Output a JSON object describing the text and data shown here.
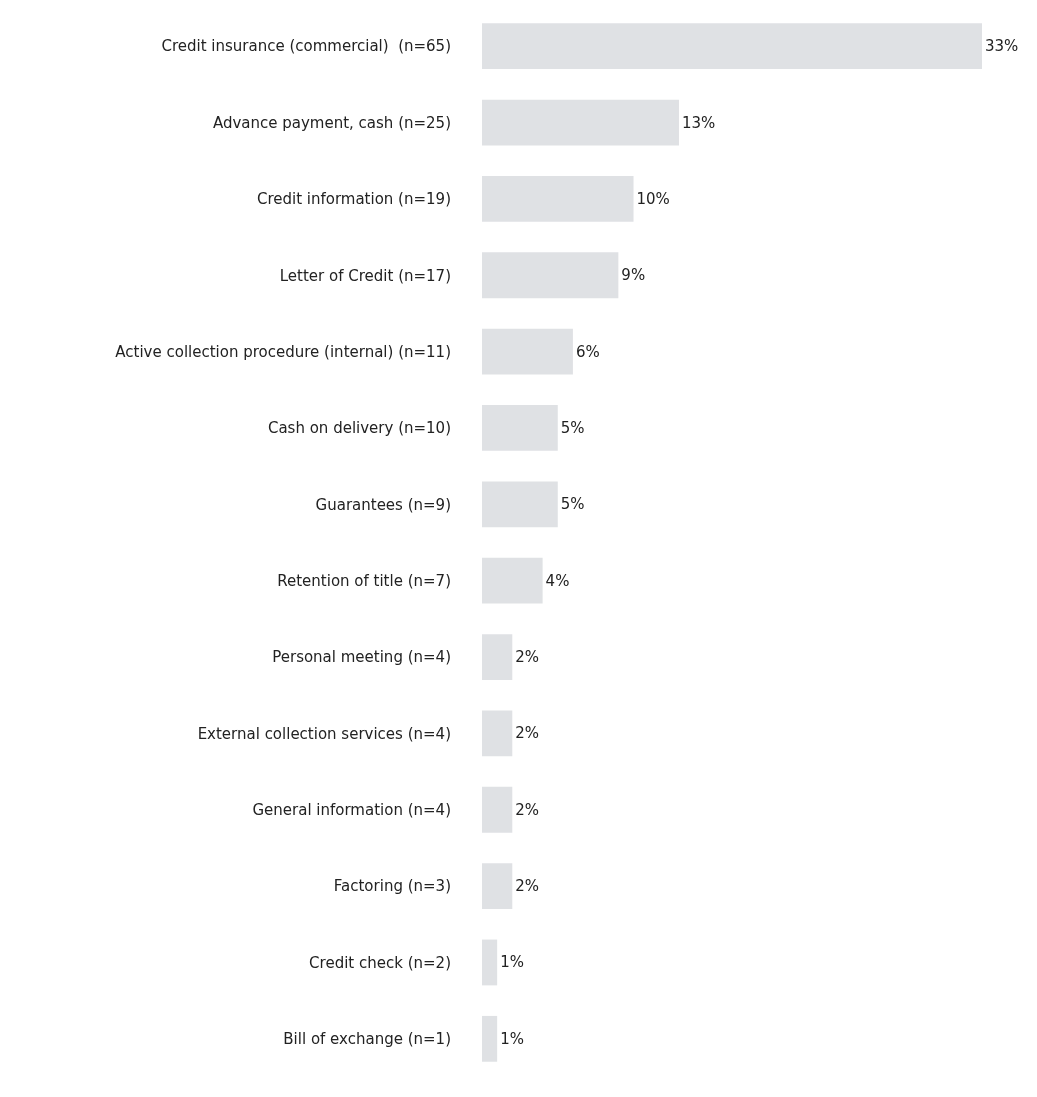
{
  "chart_data": {
    "type": "bar",
    "orientation": "horizontal",
    "categories": [
      "Credit insurance (commercial)  (n=65)",
      "Advance payment, cash (n=25)",
      "Credit information (n=19)",
      "Letter of Credit (n=17)",
      "Active collection procedure (internal) (n=11)",
      "Cash on delivery (n=10)",
      "Guarantees (n=9)",
      "Retention of title (n=7)",
      "Personal meeting (n=4)",
      "External collection services (n=4)",
      "General information (n=4)",
      "Factoring (n=3)",
      "Credit check (n=2)",
      "Bill of exchange (n=1)"
    ],
    "values": [
      33,
      13,
      10,
      9,
      6,
      5,
      5,
      4,
      2,
      2,
      2,
      2,
      1,
      1
    ],
    "value_labels": [
      "33%",
      "13%",
      "10%",
      "9%",
      "6%",
      "5%",
      "5%",
      "4%",
      "2%",
      "2%",
      "2%",
      "2%",
      "1%",
      "1%"
    ],
    "color": "#dfe1e4",
    "xlim": [
      0,
      33
    ],
    "tick_labels": "y",
    "legend": false
  }
}
